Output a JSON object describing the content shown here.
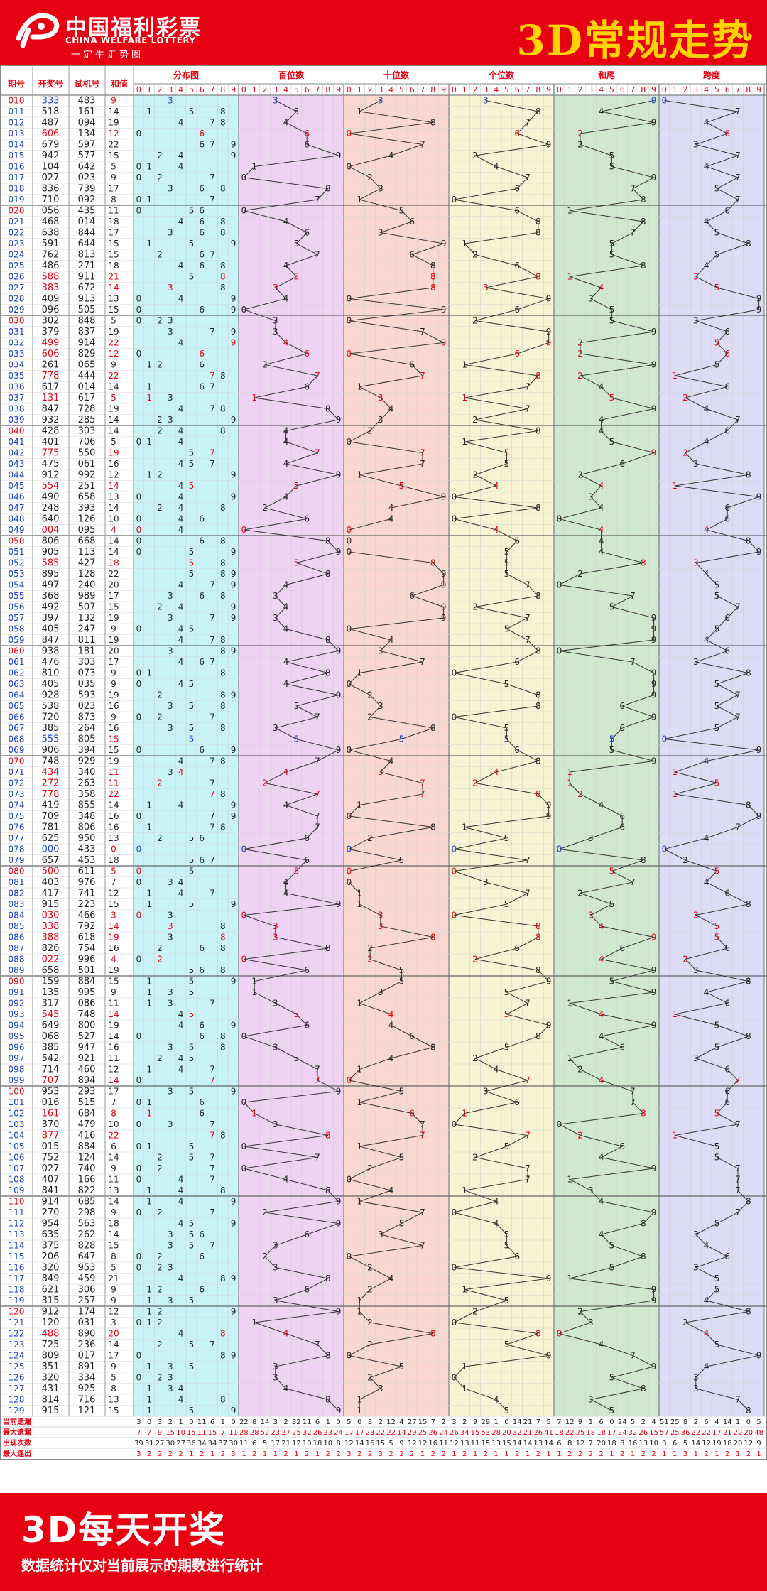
{
  "header": {
    "cn_name": "中国福利彩票",
    "en_name": "CHINA WELFARE LOTTERY",
    "slogan": "一定牛走势图",
    "title": "3D常规走势"
  },
  "footer": {
    "slogan": "3D每天开奖",
    "note": "数据统计仅对当前展示的期数进行统计"
  },
  "colors": {
    "red": "#e60012",
    "title_yellow": "#ffd200",
    "blue_num": "#1a3ccf",
    "red_num": "#e60012",
    "sec_distribution": "#c9f4f7",
    "sec_hundreds": "#f0d2f4",
    "sec_tens": "#fbd8cf",
    "sec_units": "#f8f3d3",
    "sec_tail": "#cfe9cf",
    "sec_span": "#dcdcf7"
  },
  "table": {
    "headers": [
      "期号",
      "开奖号",
      "试机号",
      "和值",
      "分布图",
      "百位数",
      "十位数",
      "个位数",
      "和尾",
      "跨度"
    ],
    "digits": [
      "0",
      "1",
      "2",
      "3",
      "4",
      "5",
      "6",
      "7",
      "8",
      "9"
    ],
    "stat_labels": [
      "当前遗漏",
      "最大遗漏",
      "出现次数",
      "最大连出"
    ]
  },
  "chart_data": {
    "type": "table",
    "title": "3D常规走势",
    "rows": [
      [
        "010",
        "333",
        "483",
        "9"
      ],
      [
        "011",
        "518",
        "161",
        "14"
      ],
      [
        "012",
        "487",
        "094",
        "19"
      ],
      [
        "013",
        "606",
        "134",
        "12"
      ],
      [
        "014",
        "679",
        "597",
        "22"
      ],
      [
        "015",
        "942",
        "577",
        "15"
      ],
      [
        "016",
        "104",
        "642",
        "5"
      ],
      [
        "017",
        "027",
        "023",
        "9"
      ],
      [
        "018",
        "836",
        "739",
        "17"
      ],
      [
        "019",
        "710",
        "092",
        "8"
      ],
      [
        "020",
        "056",
        "435",
        "11"
      ],
      [
        "021",
        "468",
        "014",
        "18"
      ],
      [
        "022",
        "638",
        "844",
        "17"
      ],
      [
        "023",
        "591",
        "644",
        "15"
      ],
      [
        "024",
        "762",
        "813",
        "15"
      ],
      [
        "025",
        "486",
        "271",
        "18"
      ],
      [
        "026",
        "588",
        "911",
        "21"
      ],
      [
        "027",
        "383",
        "672",
        "14"
      ],
      [
        "028",
        "409",
        "913",
        "13"
      ],
      [
        "029",
        "096",
        "505",
        "15"
      ],
      [
        "030",
        "302",
        "848",
        "5"
      ],
      [
        "031",
        "379",
        "837",
        "19"
      ],
      [
        "032",
        "499",
        "914",
        "22"
      ],
      [
        "033",
        "606",
        "829",
        "12"
      ],
      [
        "034",
        "261",
        "065",
        "9"
      ],
      [
        "035",
        "778",
        "444",
        "22"
      ],
      [
        "036",
        "617",
        "014",
        "14"
      ],
      [
        "037",
        "131",
        "617",
        "5"
      ],
      [
        "038",
        "847",
        "728",
        "19"
      ],
      [
        "039",
        "932",
        "285",
        "14"
      ],
      [
        "040",
        "428",
        "303",
        "14"
      ],
      [
        "041",
        "401",
        "706",
        "5"
      ],
      [
        "042",
        "775",
        "550",
        "19"
      ],
      [
        "043",
        "475",
        "061",
        "16"
      ],
      [
        "044",
        "912",
        "992",
        "12"
      ],
      [
        "045",
        "554",
        "251",
        "14"
      ],
      [
        "046",
        "490",
        "658",
        "13"
      ],
      [
        "047",
        "248",
        "393",
        "14"
      ],
      [
        "048",
        "640",
        "126",
        "10"
      ],
      [
        "049",
        "004",
        "095",
        "4"
      ],
      [
        "050",
        "806",
        "668",
        "14"
      ],
      [
        "051",
        "905",
        "113",
        "14"
      ],
      [
        "052",
        "585",
        "427",
        "18"
      ],
      [
        "053",
        "895",
        "128",
        "22"
      ],
      [
        "054",
        "497",
        "240",
        "20"
      ],
      [
        "055",
        "368",
        "989",
        "17"
      ],
      [
        "056",
        "492",
        "507",
        "15"
      ],
      [
        "057",
        "397",
        "132",
        "19"
      ],
      [
        "058",
        "405",
        "247",
        "9"
      ],
      [
        "059",
        "847",
        "811",
        "19"
      ],
      [
        "060",
        "938",
        "181",
        "20"
      ],
      [
        "061",
        "476",
        "303",
        "17"
      ],
      [
        "062",
        "810",
        "073",
        "9"
      ],
      [
        "063",
        "405",
        "035",
        "9"
      ],
      [
        "064",
        "928",
        "593",
        "19"
      ],
      [
        "065",
        "538",
        "023",
        "16"
      ],
      [
        "066",
        "720",
        "873",
        "9"
      ],
      [
        "067",
        "385",
        "264",
        "16"
      ],
      [
        "068",
        "555",
        "805",
        "15"
      ],
      [
        "069",
        "906",
        "394",
        "15"
      ],
      [
        "070",
        "748",
        "929",
        "19"
      ],
      [
        "071",
        "434",
        "340",
        "11"
      ],
      [
        "072",
        "272",
        "263",
        "11"
      ],
      [
        "073",
        "778",
        "358",
        "22"
      ],
      [
        "074",
        "419",
        "855",
        "14"
      ],
      [
        "075",
        "709",
        "348",
        "16"
      ],
      [
        "076",
        "781",
        "806",
        "16"
      ],
      [
        "077",
        "625",
        "950",
        "13"
      ],
      [
        "078",
        "000",
        "433",
        "0"
      ],
      [
        "079",
        "657",
        "453",
        "18"
      ],
      [
        "080",
        "500",
        "611",
        "5"
      ],
      [
        "081",
        "403",
        "976",
        "7"
      ],
      [
        "082",
        "417",
        "741",
        "12"
      ],
      [
        "083",
        "915",
        "223",
        "15"
      ],
      [
        "084",
        "030",
        "466",
        "3"
      ],
      [
        "085",
        "338",
        "792",
        "14"
      ],
      [
        "086",
        "388",
        "618",
        "19"
      ],
      [
        "087",
        "826",
        "754",
        "16"
      ],
      [
        "088",
        "022",
        "996",
        "4"
      ],
      [
        "089",
        "658",
        "501",
        "19"
      ],
      [
        "090",
        "159",
        "884",
        "15"
      ],
      [
        "091",
        "135",
        "995",
        "9"
      ],
      [
        "092",
        "317",
        "086",
        "11"
      ],
      [
        "093",
        "545",
        "748",
        "14"
      ],
      [
        "094",
        "649",
        "800",
        "19"
      ],
      [
        "095",
        "068",
        "527",
        "14"
      ],
      [
        "096",
        "385",
        "947",
        "16"
      ],
      [
        "097",
        "542",
        "921",
        "11"
      ],
      [
        "098",
        "714",
        "460",
        "12"
      ],
      [
        "099",
        "707",
        "894",
        "14"
      ],
      [
        "100",
        "953",
        "293",
        "17"
      ],
      [
        "101",
        "016",
        "515",
        "7"
      ],
      [
        "102",
        "161",
        "684",
        "8"
      ],
      [
        "103",
        "370",
        "479",
        "10"
      ],
      [
        "104",
        "877",
        "416",
        "22"
      ],
      [
        "105",
        "015",
        "884",
        "6"
      ],
      [
        "106",
        "752",
        "124",
        "14"
      ],
      [
        "107",
        "027",
        "740",
        "9"
      ],
      [
        "108",
        "407",
        "166",
        "11"
      ],
      [
        "109",
        "841",
        "822",
        "13"
      ],
      [
        "110",
        "914",
        "685",
        "14"
      ],
      [
        "111",
        "270",
        "298",
        "9"
      ],
      [
        "112",
        "954",
        "563",
        "18"
      ],
      [
        "113",
        "635",
        "262",
        "14"
      ],
      [
        "114",
        "375",
        "828",
        "15"
      ],
      [
        "115",
        "206",
        "647",
        "8"
      ],
      [
        "116",
        "320",
        "953",
        "5"
      ],
      [
        "117",
        "849",
        "459",
        "21"
      ],
      [
        "118",
        "621",
        "306",
        "9"
      ],
      [
        "119",
        "315",
        "257",
        "9"
      ],
      [
        "120",
        "912",
        "174",
        "12"
      ],
      [
        "121",
        "120",
        "031",
        "3"
      ],
      [
        "122",
        "488",
        "890",
        "20"
      ],
      [
        "123",
        "725",
        "236",
        "14"
      ],
      [
        "124",
        "809",
        "017",
        "17"
      ],
      [
        "125",
        "351",
        "891",
        "9"
      ],
      [
        "126",
        "320",
        "334",
        "5"
      ],
      [
        "127",
        "431",
        "925",
        "8"
      ],
      [
        "128",
        "814",
        "716",
        "13"
      ],
      [
        "129",
        "915",
        "121",
        "15"
      ]
    ],
    "stats": {
      "current_miss": {
        "dist": [
          3,
          0,
          3,
          2,
          1,
          0,
          11,
          6,
          1,
          0
        ],
        "hundreds": [
          22,
          8,
          14,
          3,
          2,
          32,
          11,
          6,
          1,
          0
        ],
        "tens": [
          5,
          0,
          3,
          2,
          12,
          4,
          27,
          15,
          7,
          2
        ],
        "units": [
          3,
          2,
          9,
          29,
          1,
          0,
          14,
          21,
          7,
          5
        ],
        "tail": [
          7,
          12,
          9,
          1,
          6,
          0,
          24,
          5,
          2,
          4
        ],
        "span": [
          51,
          25,
          8,
          2,
          6,
          4,
          14,
          1,
          0,
          5
        ]
      },
      "max_miss": {
        "dist": [
          7,
          7,
          9,
          15,
          10,
          15,
          11,
          15,
          7,
          11
        ],
        "hundreds": [
          28,
          28,
          52,
          23,
          27,
          25,
          32,
          26,
          23,
          24
        ],
        "tens": [
          17,
          17,
          23,
          22,
          22,
          14,
          29,
          25,
          26,
          24
        ],
        "units": [
          26,
          34,
          15,
          53,
          28,
          20,
          32,
          21,
          26,
          41
        ],
        "tail": [
          18,
          22,
          25,
          18,
          18,
          17,
          24,
          32,
          26,
          15
        ],
        "span": [
          57,
          25,
          36,
          22,
          22,
          17,
          21,
          22,
          20,
          48
        ]
      },
      "count": {
        "dist": [
          39,
          31,
          27,
          30,
          27,
          36,
          34,
          34,
          37,
          30
        ],
        "hundreds": [
          11,
          6,
          5,
          17,
          21,
          12,
          10,
          18,
          10,
          8
        ],
        "tens": [
          12,
          14,
          16,
          15,
          5,
          9,
          12,
          12,
          16,
          11
        ],
        "units": [
          12,
          13,
          11,
          15,
          13,
          15,
          14,
          14,
          13,
          14
        ],
        "tail": [
          6,
          8,
          12,
          7,
          20,
          18,
          8,
          16,
          13,
          10
        ],
        "span": [
          3,
          6,
          5,
          14,
          12,
          19,
          18,
          20,
          12,
          9
        ]
      },
      "max_streak": {
        "dist": [
          3,
          2,
          2,
          2,
          2,
          1,
          2,
          1,
          2,
          3
        ],
        "hundreds": [
          1,
          2,
          1,
          1,
          2,
          1,
          2,
          1,
          2,
          2
        ],
        "tens": [
          3,
          2,
          2,
          3,
          2,
          2,
          2,
          1,
          2,
          2
        ],
        "units": [
          1,
          2,
          1,
          2,
          1,
          1,
          2,
          1,
          2,
          1
        ],
        "tail": [
          1,
          2,
          2,
          2,
          2,
          1,
          2,
          1,
          2,
          2
        ],
        "span": [
          1,
          1,
          3,
          1,
          2,
          1,
          2,
          1,
          2,
          1
        ]
      }
    }
  }
}
